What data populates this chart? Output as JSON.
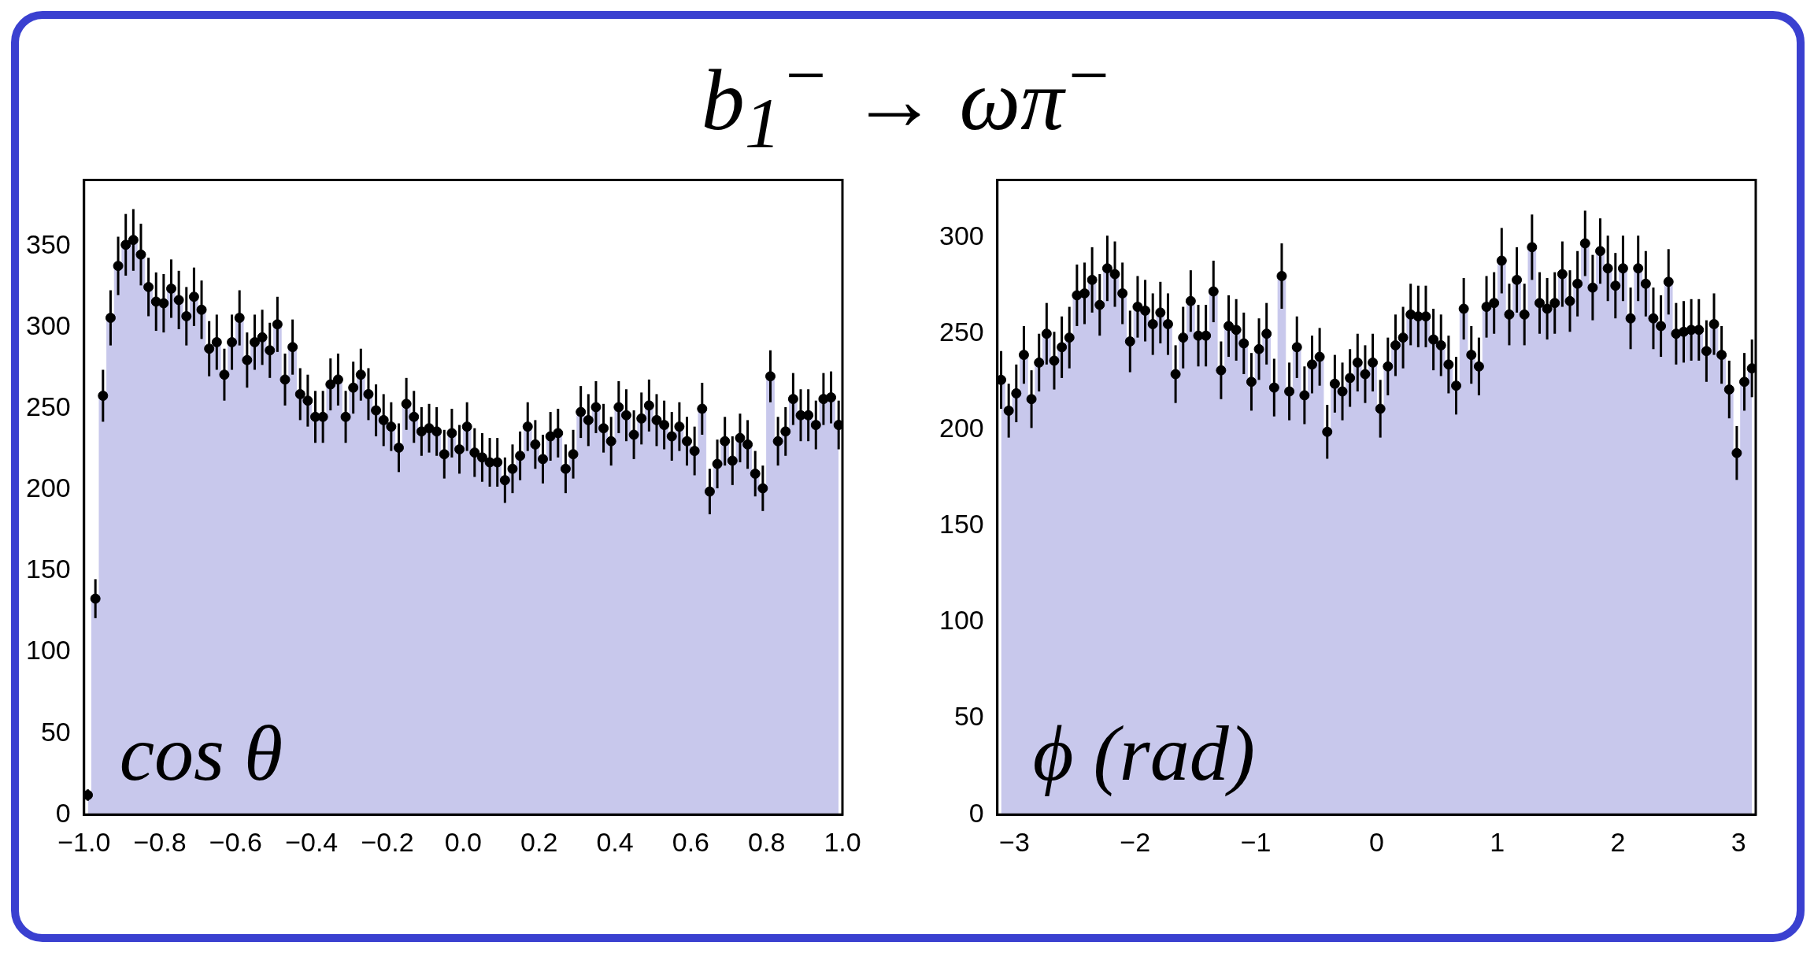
{
  "chart_data": [
    {
      "type": "scatter",
      "title": "b$_{1}$$^{−}$ → ωπ$^{−}$",
      "xlabel": "cos θ",
      "x": [
        -0.99,
        -0.97,
        -0.95,
        -0.93,
        -0.91,
        -0.89,
        -0.87,
        -0.85,
        -0.83,
        -0.81,
        -0.79,
        -0.77,
        -0.75,
        -0.73,
        -0.71,
        -0.69,
        -0.67,
        -0.65,
        -0.63,
        -0.61,
        -0.59,
        -0.57,
        -0.55,
        -0.53,
        -0.51,
        -0.49,
        -0.47,
        -0.45,
        -0.43,
        -0.41,
        -0.39,
        -0.37,
        -0.35,
        -0.33,
        -0.31,
        -0.29,
        -0.27,
        -0.25,
        -0.23,
        -0.21,
        -0.19,
        -0.17,
        -0.15,
        -0.13,
        -0.11,
        -0.09,
        -0.07,
        -0.05,
        -0.03,
        -0.01,
        0.01,
        0.03,
        0.05,
        0.07,
        0.09,
        0.11,
        0.13,
        0.15,
        0.17,
        0.19,
        0.21,
        0.23,
        0.25,
        0.27,
        0.29,
        0.31,
        0.33,
        0.35,
        0.37,
        0.39,
        0.41,
        0.43,
        0.45,
        0.47,
        0.49,
        0.51,
        0.53,
        0.55,
        0.57,
        0.59,
        0.61,
        0.63,
        0.65,
        0.67,
        0.69,
        0.71,
        0.73,
        0.75,
        0.77,
        0.79,
        0.81,
        0.83,
        0.85,
        0.87,
        0.89,
        0.91,
        0.93,
        0.95,
        0.97,
        0.99
      ],
      "series": [
        {
          "type": "area",
          "color": "#c8c8ec",
          "values": [
            12,
            133,
            258,
            306,
            338,
            351,
            354,
            345,
            325,
            316,
            315,
            324,
            317,
            307,
            319,
            311,
            287,
            291,
            271,
            291,
            306,
            280,
            291,
            294,
            286,
            302,
            268,
            288,
            259,
            255,
            245,
            245,
            265,
            268,
            245,
            263,
            271,
            259,
            249,
            243,
            239,
            226,
            253,
            245,
            236,
            238,
            236,
            222,
            235,
            225,
            239,
            223,
            220,
            217,
            217,
            206,
            213,
            221,
            239,
            228,
            219,
            233,
            235,
            213,
            222,
            248,
            243,
            251,
            238,
            230,
            251,
            246,
            234,
            244,
            252,
            243,
            240,
            233,
            239,
            230,
            224,
            250,
            199,
            216,
            230,
            218,
            232,
            228,
            210,
            201,
            270,
            230,
            236,
            256,
            246,
            246,
            240,
            256,
            257,
            240
          ]
        },
        {
          "type": "scatter",
          "color": "#000000",
          "marker": "circle",
          "values": [
            12,
            133,
            258,
            306,
            338,
            351,
            354,
            345,
            325,
            316,
            315,
            324,
            317,
            307,
            319,
            311,
            287,
            291,
            271,
            291,
            306,
            280,
            291,
            294,
            286,
            302,
            268,
            288,
            259,
            255,
            245,
            245,
            265,
            268,
            245,
            263,
            271,
            259,
            249,
            243,
            239,
            226,
            253,
            245,
            236,
            238,
            236,
            222,
            235,
            225,
            239,
            223,
            220,
            217,
            217,
            206,
            213,
            221,
            239,
            228,
            219,
            233,
            235,
            213,
            222,
            248,
            243,
            251,
            238,
            230,
            251,
            246,
            234,
            244,
            252,
            243,
            240,
            233,
            239,
            230,
            224,
            250,
            199,
            216,
            230,
            218,
            232,
            228,
            210,
            201,
            270,
            230,
            236,
            256,
            246,
            246,
            240,
            256,
            257,
            240
          ],
          "errors": [
            3.5,
            12,
            16,
            17,
            18,
            19,
            19,
            19,
            18,
            18,
            18,
            18,
            18,
            18,
            18,
            18,
            17,
            17,
            16,
            17,
            17,
            17,
            17,
            17,
            17,
            17,
            16,
            17,
            16,
            16,
            16,
            16,
            16,
            16,
            16,
            16,
            16,
            16,
            16,
            16,
            15,
            15,
            16,
            16,
            15,
            15,
            15,
            15,
            15,
            15,
            15,
            15,
            15,
            15,
            15,
            14,
            15,
            15,
            15,
            15,
            15,
            15,
            15,
            15,
            15,
            16,
            16,
            16,
            15,
            15,
            16,
            16,
            15,
            16,
            16,
            16,
            15,
            15,
            15,
            15,
            15,
            16,
            14,
            15,
            15,
            15,
            15,
            15,
            14,
            14,
            16,
            15,
            15,
            16,
            16,
            16,
            15,
            16,
            16,
            15
          ]
        }
      ],
      "xlim": [
        -1,
        1
      ],
      "ylim": [
        0,
        391
      ],
      "xticks": [
        {
          "value": -1,
          "label": "−1.0"
        },
        {
          "value": -0.8,
          "label": "−0.8"
        },
        {
          "value": -0.6,
          "label": "−0.6"
        },
        {
          "value": -0.4,
          "label": "−0.4"
        },
        {
          "value": -0.2,
          "label": "−0.2"
        },
        {
          "value": 0,
          "label": "0.0"
        },
        {
          "value": 0.2,
          "label": "0.2"
        },
        {
          "value": 0.4,
          "label": "0.4"
        },
        {
          "value": 0.6,
          "label": "0.6"
        },
        {
          "value": 0.8,
          "label": "0.8"
        },
        {
          "value": 1,
          "label": "1.0"
        }
      ],
      "yticks": [
        0,
        50,
        100,
        150,
        200,
        250,
        300,
        350
      ]
    },
    {
      "type": "scatter",
      "xlabel": "ϕ (rad)",
      "x": [
        -3.1102,
        -3.0473,
        -2.9845,
        -2.9217,
        -2.8588,
        -2.796,
        -2.7332,
        -2.6704,
        -2.6075,
        -2.5447,
        -2.4819,
        -2.419,
        -2.3562,
        -2.2934,
        -2.2305,
        -2.1677,
        -2.1049,
        -2.042,
        -1.9792,
        -1.9164,
        -1.8535,
        -1.7907,
        -1.7279,
        -1.665,
        -1.6022,
        -1.5394,
        -1.4765,
        -1.4137,
        -1.3509,
        -1.2881,
        -1.2252,
        -1.1624,
        -1.0996,
        -1.0367,
        -0.9739,
        -0.9111,
        -0.8482,
        -0.7854,
        -0.7226,
        -0.6597,
        -0.5969,
        -0.5341,
        -0.4712,
        -0.4084,
        -0.3456,
        -0.2827,
        -0.2199,
        -0.1571,
        -0.0942,
        -0.0314,
        0.0314,
        0.0942,
        0.1571,
        0.2199,
        0.2827,
        0.3456,
        0.4084,
        0.4712,
        0.5341,
        0.5969,
        0.6597,
        0.7226,
        0.7854,
        0.8482,
        0.9111,
        0.9739,
        1.0367,
        1.0996,
        1.1624,
        1.2252,
        1.2881,
        1.3509,
        1.4137,
        1.4765,
        1.5394,
        1.6022,
        1.665,
        1.7279,
        1.7907,
        1.8535,
        1.9164,
        1.9792,
        2.042,
        2.1049,
        2.1677,
        2.2305,
        2.2934,
        2.3562,
        2.419,
        2.4819,
        2.5447,
        2.6075,
        2.6704,
        2.7332,
        2.796,
        2.8588,
        2.9217,
        2.9845,
        3.0473,
        3.1102
      ],
      "series": [
        {
          "type": "area",
          "color": "#c8c8ec",
          "values": [
            226,
            210,
            219,
            239,
            216,
            235,
            250,
            236,
            243,
            248,
            270,
            271,
            278,
            265,
            284,
            281,
            271,
            246,
            264,
            262,
            255,
            261,
            255,
            229,
            248,
            267,
            249,
            249,
            272,
            231,
            254,
            252,
            245,
            225,
            242,
            250,
            222,
            280,
            220,
            243,
            218,
            234,
            238,
            199,
            224,
            220,
            227,
            235,
            229,
            235,
            211,
            233,
            244,
            248,
            260,
            259,
            259,
            247,
            244,
            234,
            223,
            263,
            239,
            233,
            264,
            266,
            288,
            260,
            278,
            260,
            295,
            266,
            263,
            266,
            281,
            267,
            276,
            297,
            274,
            293,
            284,
            275,
            284,
            258,
            284,
            276,
            258,
            254,
            277,
            250,
            251,
            252,
            252,
            241,
            255,
            239,
            221,
            188,
            225,
            232
          ]
        },
        {
          "type": "scatter",
          "color": "#000000",
          "marker": "circle",
          "values": [
            226,
            210,
            219,
            239,
            216,
            235,
            250,
            236,
            243,
            248,
            270,
            271,
            278,
            265,
            284,
            281,
            271,
            246,
            264,
            262,
            255,
            261,
            255,
            229,
            248,
            267,
            249,
            249,
            272,
            231,
            254,
            252,
            245,
            225,
            242,
            250,
            222,
            280,
            220,
            243,
            218,
            234,
            238,
            199,
            224,
            220,
            227,
            235,
            229,
            235,
            211,
            233,
            244,
            248,
            260,
            259,
            259,
            247,
            244,
            234,
            223,
            263,
            239,
            233,
            264,
            266,
            288,
            260,
            278,
            260,
            295,
            266,
            263,
            266,
            281,
            267,
            276,
            297,
            274,
            293,
            284,
            275,
            284,
            258,
            284,
            276,
            258,
            254,
            277,
            250,
            251,
            252,
            252,
            241,
            255,
            239,
            221,
            188,
            225,
            232
          ],
          "errors": [
            15,
            14,
            15,
            15,
            15,
            15,
            16,
            15,
            16,
            16,
            16,
            16,
            17,
            16,
            17,
            17,
            16,
            16,
            16,
            16,
            16,
            16,
            16,
            15,
            16,
            16,
            16,
            16,
            16,
            15,
            16,
            16,
            16,
            15,
            16,
            16,
            15,
            17,
            15,
            16,
            15,
            15,
            15,
            14,
            15,
            15,
            15,
            15,
            15,
            15,
            15,
            15,
            16,
            16,
            16,
            16,
            16,
            16,
            16,
            15,
            15,
            16,
            15,
            15,
            16,
            16,
            17,
            16,
            17,
            16,
            17,
            16,
            16,
            16,
            17,
            16,
            17,
            17,
            17,
            17,
            17,
            17,
            17,
            16,
            17,
            17,
            16,
            16,
            17,
            16,
            16,
            16,
            16,
            16,
            16,
            15,
            15,
            14,
            15,
            15
          ]
        }
      ],
      "xlim": [
        -3.1416,
        3.1416
      ],
      "ylim": [
        0,
        330
      ],
      "xticks": [
        {
          "value": -3,
          "label": "−3"
        },
        {
          "value": -2,
          "label": "−2"
        },
        {
          "value": -1,
          "label": "−1"
        },
        0,
        1,
        2,
        3
      ],
      "yticks": [
        0,
        50,
        100,
        150,
        200,
        250,
        300
      ]
    }
  ]
}
